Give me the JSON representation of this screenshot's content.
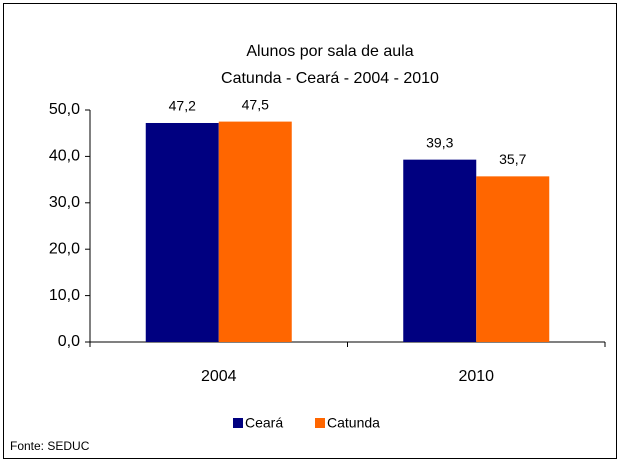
{
  "chart_data": {
    "type": "bar",
    "title": "Alunos por sala de aula",
    "subtitle": "Catunda - Ceará - 2004 - 2010",
    "categories": [
      "2004",
      "2010"
    ],
    "series": [
      {
        "name": "Ceará",
        "color": "#000080",
        "values": [
          47.2,
          39.3
        ],
        "value_labels": [
          "47,2",
          "39,3"
        ]
      },
      {
        "name": "Catunda",
        "color": "#ff6600",
        "values": [
          47.5,
          35.7
        ],
        "value_labels": [
          "47,5",
          "35,7"
        ]
      }
    ],
    "ylim": [
      0,
      50
    ],
    "yticks": [
      {
        "value": 0,
        "label": "0,0"
      },
      {
        "value": 10,
        "label": "10,0"
      },
      {
        "value": 20,
        "label": "20,0"
      },
      {
        "value": 30,
        "label": "30,0"
      },
      {
        "value": 40,
        "label": "40,0"
      },
      {
        "value": 50,
        "label": "50,0"
      }
    ],
    "legend": "bottom",
    "source": "Fonte: SEDUC"
  }
}
